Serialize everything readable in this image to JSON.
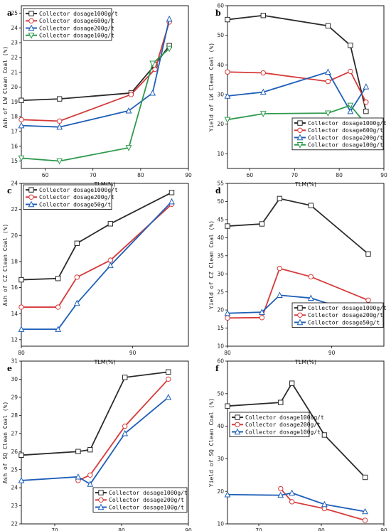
{
  "chart_data": [
    {
      "type": "line",
      "panel_label": "a",
      "xlabel": "TLM(%)",
      "ylabel": "Ash  of LW Clean Coal (%)",
      "xlim": [
        55,
        90
      ],
      "ylim": [
        14.5,
        25.5
      ],
      "xticks": [
        60,
        70,
        80,
        90
      ],
      "yticks": [
        15,
        16,
        17,
        18,
        19,
        20,
        21,
        22,
        23,
        24,
        25
      ],
      "legend_position": "top-left",
      "series": [
        {
          "name": "Collector dosage1000g/t",
          "color": "#2b2b2b",
          "marker": "square",
          "x": [
            55,
            63,
            78,
            83,
            86
          ],
          "y": [
            19.1,
            19.2,
            19.6,
            21.5,
            22.8
          ]
        },
        {
          "name": "Collector dosage600g/t",
          "color": "#d63a3a",
          "marker": "circle",
          "x": [
            55,
            63,
            78,
            83,
            86
          ],
          "y": [
            17.8,
            17.7,
            19.5,
            21.2,
            24.4
          ]
        },
        {
          "name": "Collector dosage200g/t",
          "color": "#1f5fb8",
          "marker": "triangle",
          "x": [
            55,
            63,
            77.5,
            82.5,
            86
          ],
          "y": [
            17.4,
            17.3,
            18.4,
            19.6,
            24.6
          ]
        },
        {
          "name": "Collector dosage100g/t",
          "color": "#2f9a4e",
          "marker": "triangle-down",
          "x": [
            55,
            63,
            77.5,
            82.5,
            86
          ],
          "y": [
            15.2,
            15.0,
            15.9,
            21.6,
            22.6
          ]
        }
      ]
    },
    {
      "type": "line",
      "panel_label": "b",
      "xlabel": "TLM(%)",
      "ylabel": "Yield of LW Clean Coal (%)",
      "xlim": [
        55,
        90
      ],
      "ylim": [
        5,
        60
      ],
      "xticks": [
        60,
        70,
        80,
        90
      ],
      "yticks": [
        10,
        20,
        30,
        40,
        50,
        60
      ],
      "legend_position": "bottom-right",
      "series": [
        {
          "name": "Collector dosage1000g/t",
          "color": "#2b2b2b",
          "marker": "square",
          "x": [
            55,
            63,
            77.5,
            82.5,
            86
          ],
          "y": [
            55.3,
            56.7,
            53.2,
            46.6,
            24.3
          ]
        },
        {
          "name": "Collector dosage600g/t",
          "color": "#d63a3a",
          "marker": "circle",
          "x": [
            55,
            63,
            77.5,
            82.5,
            86
          ],
          "y": [
            37.6,
            37.3,
            34.4,
            37.8,
            27.4
          ]
        },
        {
          "name": "Collector dosage200g/t",
          "color": "#1f5fb8",
          "marker": "triangle",
          "x": [
            55,
            63,
            77.5,
            82.5,
            86
          ],
          "y": [
            29.5,
            30.8,
            37.6,
            24.3,
            32.6
          ]
        },
        {
          "name": "Collector dosage100g/t",
          "color": "#2f9a4e",
          "marker": "triangle-down",
          "x": [
            55,
            63,
            77.5,
            82.5,
            86
          ],
          "y": [
            21.5,
            23.5,
            23.7,
            26.3,
            19.9
          ]
        }
      ]
    },
    {
      "type": "line",
      "panel_label": "c",
      "xlabel": "TLM(%)",
      "ylabel": "Ash  of CZ Clean Coal (%)",
      "xlim": [
        80,
        95
      ],
      "ylim": [
        11.5,
        24
      ],
      "xticks": [
        80,
        90
      ],
      "yticks": [
        12,
        14,
        16,
        18,
        20,
        22,
        24
      ],
      "legend_position": "top-left",
      "series": [
        {
          "name": "Collector dosage1000g/t",
          "color": "#2b2b2b",
          "marker": "square",
          "x": [
            80,
            83.3,
            85,
            88,
            93.5
          ],
          "y": [
            16.6,
            16.7,
            19.4,
            20.9,
            23.3
          ]
        },
        {
          "name": "Collector dosage200g/t",
          "color": "#d63a3a",
          "marker": "circle",
          "x": [
            80,
            83.3,
            85,
            88,
            93.5
          ],
          "y": [
            14.5,
            14.5,
            16.8,
            18.1,
            22.4
          ]
        },
        {
          "name": "Collector dosage50g/t",
          "color": "#1f5fb8",
          "marker": "triangle",
          "x": [
            80,
            83.3,
            85,
            88,
            93.5
          ],
          "y": [
            12.8,
            12.8,
            14.8,
            17.7,
            22.6
          ]
        }
      ]
    },
    {
      "type": "line",
      "panel_label": "d",
      "xlabel": "TLM(%)",
      "ylabel": "Yield of CZ Clean Coal (%)",
      "xlim": [
        80,
        95
      ],
      "ylim": [
        10,
        55
      ],
      "xticks": [
        80,
        90
      ],
      "yticks": [
        10,
        15,
        20,
        25,
        30,
        35,
        40,
        45,
        50,
        55
      ],
      "legend_position": "bottom-right",
      "series": [
        {
          "name": "Collector dosage1000g/t",
          "color": "#2b2b2b",
          "marker": "square",
          "x": [
            80,
            83.3,
            85,
            88,
            93.5
          ],
          "y": [
            43.2,
            43.8,
            50.8,
            48.9,
            35.5
          ]
        },
        {
          "name": "Collector dosage200g/t",
          "color": "#d63a3a",
          "marker": "circle",
          "x": [
            80,
            83.3,
            85,
            88,
            93.5
          ],
          "y": [
            17.8,
            17.9,
            31.5,
            29.2,
            22.7
          ]
        },
        {
          "name": "Collector dosage50g/t",
          "color": "#1f5fb8",
          "marker": "triangle",
          "x": [
            80,
            83.3,
            85,
            88,
            93.5
          ],
          "y": [
            19.1,
            19.4,
            24.1,
            23.3,
            18.2
          ]
        }
      ]
    },
    {
      "type": "line",
      "panel_label": "e",
      "xlabel": "TLM(%)",
      "ylabel": "Ash  of SQ Clean Coal (%)",
      "xlim": [
        65,
        90
      ],
      "ylim": [
        22,
        31
      ],
      "xticks": [
        70,
        80,
        90
      ],
      "yticks": [
        22,
        23,
        24,
        25,
        26,
        27,
        28,
        29,
        30,
        31
      ],
      "legend_position": "bottom-right",
      "series": [
        {
          "name": "Collector dosage1000g/t",
          "color": "#2b2b2b",
          "marker": "square",
          "x": [
            65,
            73.5,
            75.3,
            80.5,
            87
          ],
          "y": [
            25.8,
            26.0,
            26.1,
            30.1,
            30.4
          ]
        },
        {
          "name": "Collector dosage200g/t",
          "color": "#d63a3a",
          "marker": "circle",
          "x": [
            73.5,
            75.3,
            80.5,
            87
          ],
          "y": [
            24.4,
            24.7,
            27.4,
            30.0
          ]
        },
        {
          "name": "Collector dosage100g/t",
          "color": "#1f5fb8",
          "marker": "triangle",
          "x": [
            65,
            73.5,
            75.3,
            80.5,
            87
          ],
          "y": [
            24.4,
            24.6,
            24.2,
            27.0,
            29.0
          ]
        }
      ]
    },
    {
      "type": "line",
      "panel_label": "f",
      "xlabel": "TLM(%)",
      "ylabel": "Yield of SQ Clean Coal (%)",
      "xlim": [
        65,
        90
      ],
      "ylim": [
        10,
        60
      ],
      "xticks": [
        70,
        80,
        90
      ],
      "yticks": [
        10,
        20,
        30,
        40,
        50,
        60
      ],
      "legend_position": "middle-left",
      "series": [
        {
          "name": "Collector dosage1000g/t",
          "color": "#2b2b2b",
          "marker": "square",
          "x": [
            65,
            73.5,
            75.3,
            80.5,
            87
          ],
          "y": [
            46.2,
            47.3,
            53.2,
            37.3,
            24.3
          ]
        },
        {
          "name": "Collector dosage200g/t",
          "color": "#d63a3a",
          "marker": "circle",
          "x": [
            73.5,
            75.3,
            80.5,
            87
          ],
          "y": [
            20.8,
            16.8,
            14.7,
            11.1
          ]
        },
        {
          "name": "Collector dosage100g/t",
          "color": "#1f5fb8",
          "marker": "triangle",
          "x": [
            65,
            73.5,
            75.3,
            80.5,
            87
          ],
          "y": [
            19.0,
            18.8,
            19.5,
            16.0,
            13.8
          ]
        }
      ]
    }
  ]
}
